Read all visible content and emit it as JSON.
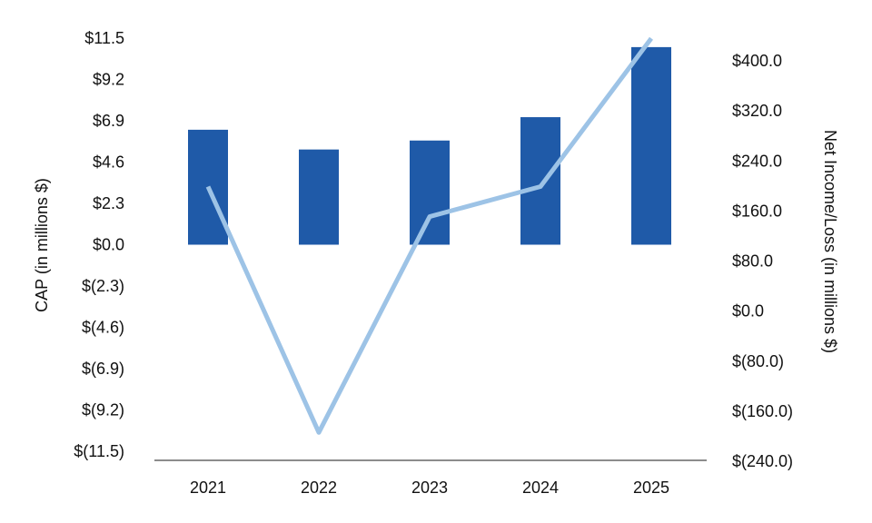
{
  "chart_data": {
    "type": "bar",
    "categories": [
      "2021",
      "2022",
      "2023",
      "2024",
      "2025"
    ],
    "series": [
      {
        "axis": "left",
        "type": "bar",
        "color": "#1f5aa8",
        "values": [
          6.4,
          5.3,
          5.8,
          7.1,
          11.0
        ]
      },
      {
        "axis": "right",
        "type": "line",
        "color": "#9dc3e6",
        "values": [
          199,
          -194,
          151,
          199,
          436
        ]
      }
    ],
    "y_left": {
      "label": "CAP (in millions $)",
      "lim": [
        -11.5,
        11.5
      ],
      "ticks": [
        11.5,
        9.2,
        6.9,
        4.6,
        2.3,
        0.0,
        -2.3,
        -4.6,
        -6.9,
        -9.2,
        -11.5
      ],
      "tick_labels": [
        "$11.5",
        "$9.2",
        "$6.9",
        "$4.6",
        "$2.3",
        "$0.0",
        "$(2.3)",
        "$(4.6)",
        "$(6.9)",
        "$(9.2)",
        "$(11.5)"
      ]
    },
    "y_right": {
      "label": "Net Income/Loss (in millions $)",
      "lim": [
        -240,
        400
      ],
      "ticks": [
        400,
        320,
        240,
        160,
        80,
        0,
        -80,
        -160,
        -240
      ],
      "tick_labels": [
        "$400.0",
        "$320.0",
        "$240.0",
        "$160.0",
        "$80.0",
        "$0.0",
        "$(80.0)",
        "$(160.0)",
        "$(240.0)"
      ]
    },
    "grid": false,
    "legend": "none",
    "baseline_color": "#8c8c8c"
  }
}
